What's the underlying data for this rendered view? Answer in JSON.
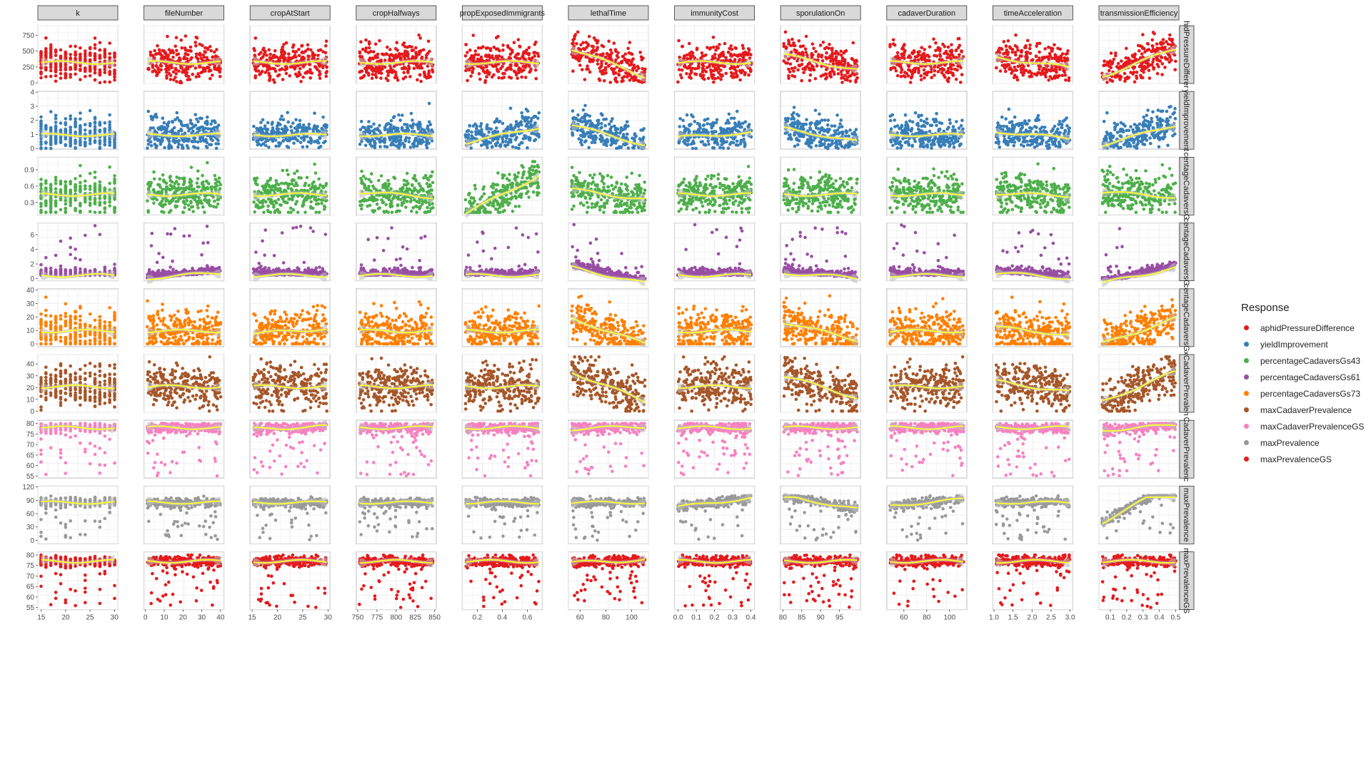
{
  "chart_data": {
    "type": "scatter",
    "layout": "facet-grid",
    "columns": [
      {
        "name": "k",
        "ticks": [
          "15",
          "20",
          "25",
          "30"
        ],
        "tick_values": [
          15,
          20,
          25,
          30
        ],
        "xlim": [
          14.3,
          30.7
        ],
        "discrete": true
      },
      {
        "name": "fileNumber",
        "ticks": [
          "0",
          "10",
          "20",
          "30",
          "40"
        ],
        "tick_values": [
          0,
          10,
          20,
          30,
          40
        ],
        "xlim": [
          -0.8,
          41.8
        ]
      },
      {
        "name": "cropAtStart",
        "ticks": [
          "15",
          "20",
          "25",
          "30"
        ],
        "tick_values": [
          15,
          20,
          25,
          30
        ],
        "xlim": [
          14.6,
          30.4
        ]
      },
      {
        "name": "cropHalfways",
        "ticks": [
          "750",
          "775",
          "800",
          "825",
          "850"
        ],
        "tick_values": [
          750,
          775,
          800,
          825,
          850
        ],
        "xlim": [
          748,
          852
        ]
      },
      {
        "name": "propExposedImmigrants",
        "ticks": [
          "0.2",
          "0.4",
          "0.6"
        ],
        "tick_values": [
          0.2,
          0.4,
          0.6
        ],
        "xlim": [
          0.08,
          0.72
        ]
      },
      {
        "name": "lethalTime",
        "ticks": [
          "60",
          "80",
          "100"
        ],
        "tick_values": [
          60,
          80,
          100
        ],
        "xlim": [
          51,
          113
        ]
      },
      {
        "name": "immunityCost",
        "ticks": [
          "0.0",
          "0.1",
          "0.2",
          "0.3",
          "0.4"
        ],
        "tick_values": [
          0,
          0.1,
          0.2,
          0.3,
          0.4
        ],
        "xlim": [
          -0.02,
          0.42
        ]
      },
      {
        "name": "sporulationOn",
        "ticks": [
          "80",
          "85",
          "90",
          "95"
        ],
        "tick_values": [
          80,
          85,
          90,
          95
        ],
        "xlim": [
          79.4,
          100.6
        ]
      },
      {
        "name": "cadaverDuration",
        "ticks": [
          "60",
          "80",
          "100"
        ],
        "tick_values": [
          60,
          80,
          100
        ],
        "xlim": [
          45,
          115
        ]
      },
      {
        "name": "timeAcceleration",
        "ticks": [
          "1.0",
          "1.5",
          "2.0",
          "2.5",
          "3.0"
        ],
        "tick_values": [
          1,
          1.5,
          2,
          2.5,
          3
        ],
        "xlim": [
          0.97,
          3.07
        ]
      },
      {
        "name": "transmissionEfficiency",
        "ticks": [
          "0.1",
          "0.2",
          "0.3",
          "0.4",
          "0.5"
        ],
        "tick_values": [
          0.1,
          0.2,
          0.3,
          0.4,
          0.5
        ],
        "xlim": [
          0.03,
          0.52
        ]
      }
    ],
    "rows": [
      {
        "name": "aphidPressureDifference",
        "strip": "hidPressureDifferer",
        "color": "#E41A1C",
        "ticks": [
          "0",
          "250",
          "500",
          "750"
        ],
        "tick_values": [
          0,
          250,
          500,
          750
        ],
        "ylim": [
          -10,
          900
        ],
        "lo": 0,
        "hi": 800,
        "base": 0.4
      },
      {
        "name": "yieldImprovement",
        "strip": "yieldImprovement",
        "color": "#377EB8",
        "ticks": [
          "0",
          "1",
          "2",
          "3",
          "4"
        ],
        "tick_values": [
          0,
          1,
          2,
          3,
          4
        ],
        "ylim": [
          -0.05,
          4.05
        ],
        "lo": 0,
        "hi": 3.2,
        "base": 0.3
      },
      {
        "name": "percentageCadaversGs43",
        "strip": "centageCadaversG",
        "color": "#4DAF4A",
        "ticks": [
          "0.3",
          "0.6",
          "0.9"
        ],
        "tick_values": [
          0.3,
          0.6,
          0.9
        ],
        "ylim": [
          0.07,
          1.13
        ],
        "lo": 0.12,
        "hi": 1.05,
        "base": 0.35
      },
      {
        "name": "percentageCadaversGs61",
        "strip": "centageCadaversG",
        "color": "#984EA3",
        "ticks": [
          "0",
          "2",
          "4",
          "6"
        ],
        "tick_values": [
          0,
          2,
          4,
          6
        ],
        "ylim": [
          -0.3,
          7.6
        ],
        "lo": 0,
        "hi": 7.2,
        "base": 0.06
      },
      {
        "name": "percentageCadaversGs73",
        "strip": "centageCadaversG",
        "color": "#FF7F00",
        "ticks": [
          "0",
          "10",
          "20",
          "30",
          "40"
        ],
        "tick_values": [
          0,
          10,
          20,
          30,
          40
        ],
        "ylim": [
          -2,
          41
        ],
        "lo": 0,
        "hi": 38,
        "base": 0.25
      },
      {
        "name": "maxCadaverPrevalence",
        "strip": "xCadaverPrevalen",
        "color": "#A65628",
        "ticks": [
          "0",
          "10",
          "20",
          "30",
          "40"
        ],
        "tick_values": [
          0,
          10,
          20,
          30,
          40
        ],
        "ylim": [
          -1,
          48
        ],
        "lo": 0,
        "hi": 46,
        "base": 0.45
      },
      {
        "name": "maxCadaverPrevalenceGS",
        "strip": "CadaverPrevalenc",
        "color": "#F781BF",
        "ticks": [
          "55",
          "60",
          "65",
          "70",
          "75",
          "80"
        ],
        "tick_values": [
          55,
          60,
          65,
          70,
          75,
          80
        ],
        "ylim": [
          54,
          81.5
        ],
        "lo": 55,
        "hi": 80,
        "base": 0.92
      },
      {
        "name": "maxPrevalence",
        "strip": "maxPrevalence",
        "color": "#999999",
        "ticks": [
          "0",
          "30",
          "60",
          "90",
          "120"
        ],
        "tick_values": [
          0,
          30,
          60,
          90,
          120
        ],
        "ylim": [
          -8,
          122
        ],
        "lo": 0,
        "hi": 100,
        "base": 0.85
      },
      {
        "name": "maxPrevalenceGS",
        "strip": "maxPrevalenceGS",
        "color": "#E41A1C",
        "ticks": [
          "55",
          "60",
          "65",
          "70",
          "75",
          "80"
        ],
        "tick_values": [
          55,
          60,
          65,
          70,
          75,
          80
        ],
        "ylim": [
          54,
          81.5
        ],
        "lo": 55,
        "hi": 80,
        "base": 0.88
      }
    ],
    "smooth_color": "#FFFF33",
    "ribbon_color": "#BEBEBE",
    "legend": {
      "title": "Response",
      "placement": "right",
      "entries": [
        {
          "label": "aphidPressureDifference",
          "color": "#E41A1C"
        },
        {
          "label": "yieldImprovement",
          "color": "#377EB8"
        },
        {
          "label": "percentageCadaversGs43",
          "color": "#4DAF4A"
        },
        {
          "label": "percentageCadaversGs61",
          "color": "#984EA3"
        },
        {
          "label": "percentageCadaversGs73",
          "color": "#FF7F00"
        },
        {
          "label": "maxCadaverPrevalence",
          "color": "#A65628"
        },
        {
          "label": "maxCadaverPrevalenceGS",
          "color": "#F781BF"
        },
        {
          "label": "maxPrevalence",
          "color": "#999999"
        },
        {
          "label": "maxPrevalenceGS",
          "color": "#E41A1C"
        }
      ]
    },
    "grid": true
  }
}
